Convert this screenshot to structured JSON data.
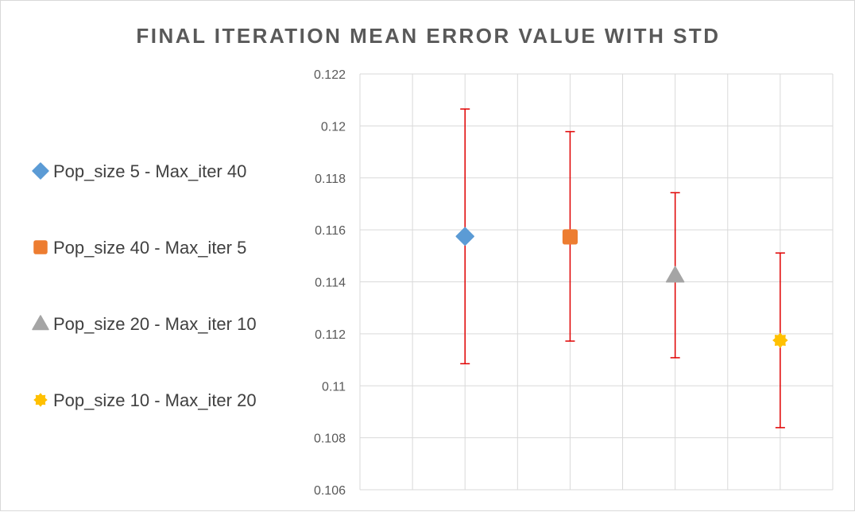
{
  "chart_data": {
    "type": "scatter",
    "title": "FINAL ITERATION MEAN ERROR VALUE WITH STD",
    "xlabel": "",
    "ylabel": "",
    "xlim": [
      0,
      9
    ],
    "ylim": [
      0.106,
      0.122
    ],
    "y_ticks": [
      0.106,
      0.108,
      0.11,
      0.112,
      0.114,
      0.116,
      0.118,
      0.12,
      0.122
    ],
    "y_tick_labels": [
      "0.106",
      "0.108",
      "0.11",
      "0.112",
      "0.114",
      "0.116",
      "0.118",
      "0.12",
      "0.122"
    ],
    "grid": true,
    "legend_position": "left",
    "error_bar_color": "#e00000",
    "series": [
      {
        "name": "Pop_size 5 - Max_iter 40",
        "marker": "diamond",
        "color": "#5b9bd5",
        "x": 2,
        "y": 0.11575,
        "err_low": 0.11085,
        "err_high": 0.12065
      },
      {
        "name": "Pop_size 40 - Max_iter 5",
        "marker": "square",
        "color": "#ed7d31",
        "x": 4,
        "y": 0.11573,
        "err_low": 0.11172,
        "err_high": 0.11978
      },
      {
        "name": "Pop_size 20 - Max_iter 10",
        "marker": "triangle",
        "color": "#a5a5a5",
        "x": 6,
        "y": 0.11425,
        "err_low": 0.11108,
        "err_high": 0.11743
      },
      {
        "name": "Pop_size 10 - Max_iter 20",
        "marker": "star",
        "color": "#ffc000",
        "x": 8,
        "y": 0.11175,
        "err_low": 0.10839,
        "err_high": 0.11511
      }
    ]
  }
}
